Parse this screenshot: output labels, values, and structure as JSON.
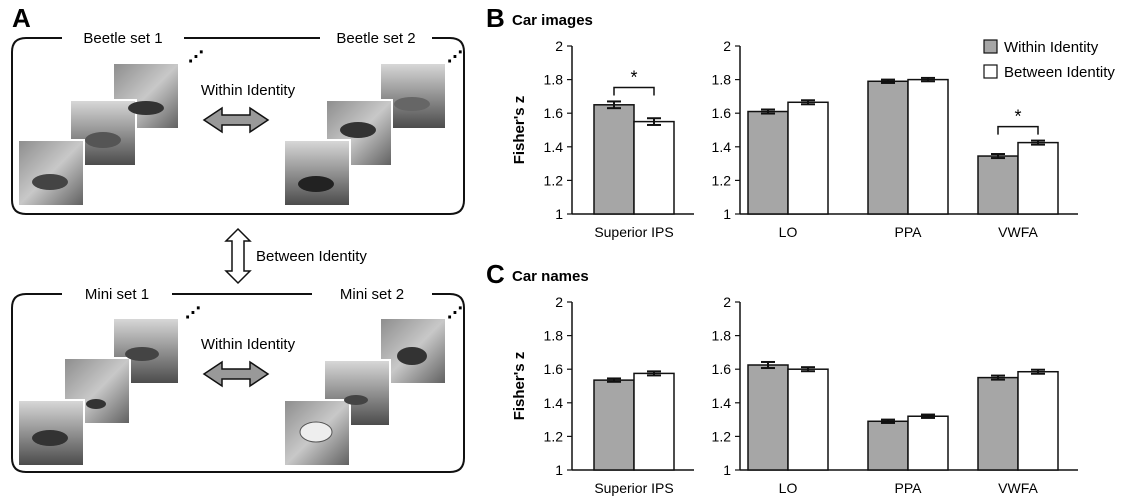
{
  "panel_a": {
    "letter": "A",
    "top_group": {
      "left_label": "Beetle set 1",
      "right_label": "Beetle set 2",
      "arrow_label": "Within Identity"
    },
    "middle_arrow_label": "Between Identity",
    "bottom_group": {
      "left_label": "Mini set 1",
      "right_label": "Mini set 2",
      "arrow_label": "Within Identity"
    }
  },
  "legend": {
    "items": [
      {
        "label": "Within Identity",
        "color": "#a6a6a6"
      },
      {
        "label": "Between Identity",
        "color": "#ffffff"
      }
    ]
  },
  "colors": {
    "within": "#a6a6a6",
    "between": "#ffffff",
    "stroke": "#111111"
  },
  "chart_data": [
    {
      "type": "bar",
      "panel": "B",
      "title": "Car images",
      "ylabel": "Fisher's z",
      "ylim": [
        1,
        2
      ],
      "yticks": [
        "1",
        "1.2",
        "1.4",
        "1.6",
        "1.8",
        "2"
      ],
      "categories": [
        "Superior IPS"
      ],
      "series": [
        {
          "name": "Within Identity",
          "values": [
            1.65
          ],
          "errors": [
            0.02
          ]
        },
        {
          "name": "Between Identity",
          "values": [
            1.55
          ],
          "errors": [
            0.02
          ]
        }
      ],
      "significance": [
        {
          "category": "Superior IPS",
          "label": "*"
        }
      ]
    },
    {
      "type": "bar",
      "panel": "B",
      "ylim": [
        1,
        2
      ],
      "yticks": [
        "1",
        "1.2",
        "1.4",
        "1.6",
        "1.8",
        "2"
      ],
      "categories": [
        "LO",
        "PPA",
        "VWFA"
      ],
      "series": [
        {
          "name": "Within Identity",
          "values": [
            1.61,
            1.79,
            1.345
          ],
          "errors": [
            0.012,
            0.01,
            0.012
          ]
        },
        {
          "name": "Between Identity",
          "values": [
            1.665,
            1.8,
            1.425
          ],
          "errors": [
            0.012,
            0.01,
            0.012
          ]
        }
      ],
      "significance": [
        {
          "category": "VWFA",
          "label": "*"
        }
      ]
    },
    {
      "type": "bar",
      "panel": "C",
      "title": "Car names",
      "ylabel": "Fisher's z",
      "ylim": [
        1,
        2
      ],
      "yticks": [
        "1",
        "1.2",
        "1.4",
        "1.6",
        "1.8",
        "2"
      ],
      "categories": [
        "Superior IPS"
      ],
      "series": [
        {
          "name": "Within Identity",
          "values": [
            1.535
          ],
          "errors": [
            0.01
          ]
        },
        {
          "name": "Between Identity",
          "values": [
            1.575
          ],
          "errors": [
            0.012
          ]
        }
      ],
      "significance": []
    },
    {
      "type": "bar",
      "panel": "C",
      "ylim": [
        1,
        2
      ],
      "yticks": [
        "1",
        "1.2",
        "1.4",
        "1.6",
        "1.8",
        "2"
      ],
      "categories": [
        "LO",
        "PPA",
        "VWFA"
      ],
      "series": [
        {
          "name": "Within Identity",
          "values": [
            1.625,
            1.29,
            1.55
          ],
          "errors": [
            0.018,
            0.01,
            0.012
          ]
        },
        {
          "name": "Between Identity",
          "values": [
            1.6,
            1.32,
            1.585
          ],
          "errors": [
            0.012,
            0.01,
            0.012
          ]
        }
      ],
      "significance": []
    }
  ]
}
